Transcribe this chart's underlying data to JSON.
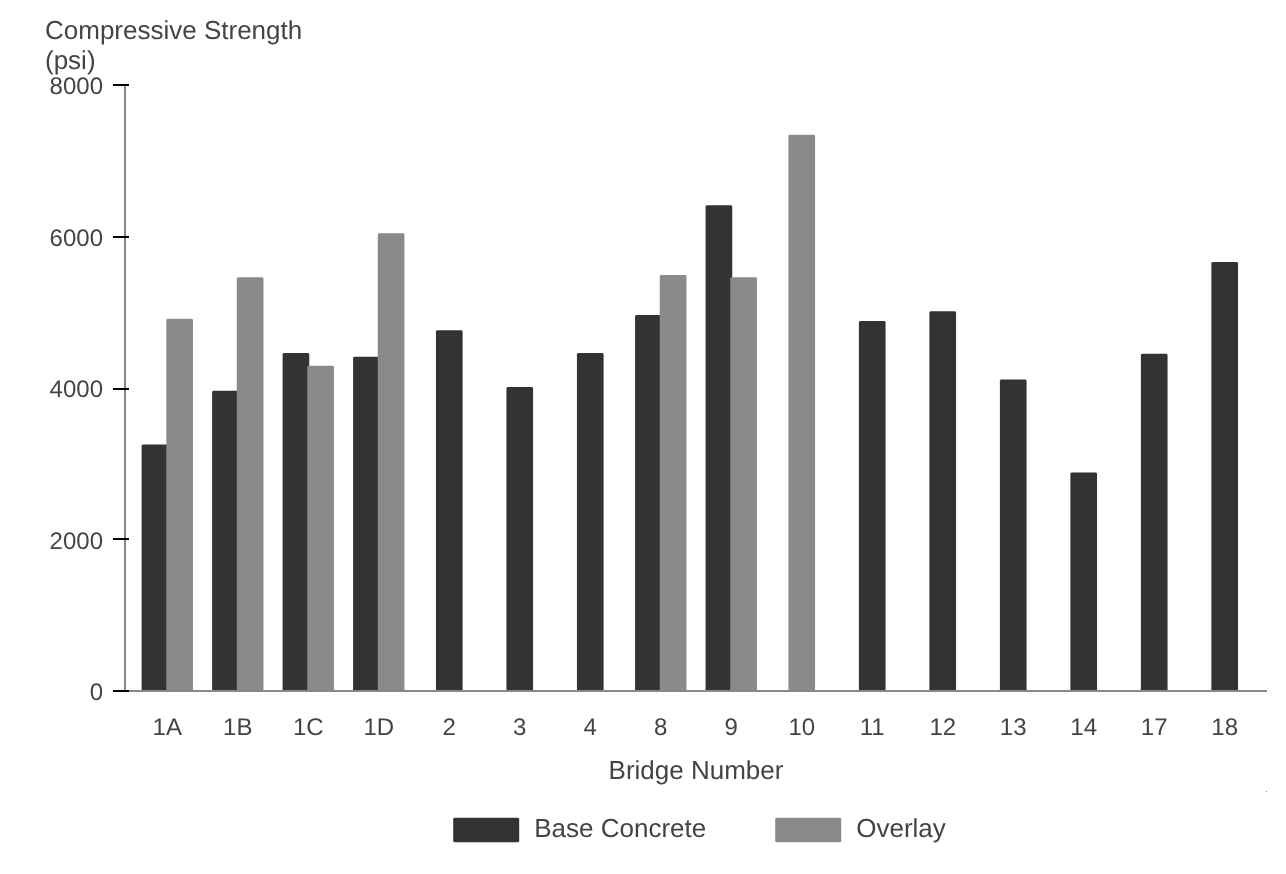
{
  "chart_data": {
    "type": "bar",
    "ylabel": "Compressive Strength\n(psi)",
    "xlabel": "Bridge Number",
    "categories": [
      "1A",
      "1B",
      "1C",
      "1D",
      "2",
      "3",
      "4",
      "8",
      "9",
      "10",
      "11",
      "12",
      "13",
      "14",
      "17",
      "18"
    ],
    "series": [
      {
        "name": "Base Concrete",
        "color": "#333333",
        "values": [
          3240,
          3950,
          4450,
          4400,
          4750,
          4000,
          4450,
          4950,
          6400,
          null,
          4870,
          5000,
          4100,
          2870,
          4440,
          5650
        ]
      },
      {
        "name": "Overlay",
        "color": "#8a8a8a",
        "values": [
          4900,
          5450,
          4280,
          6030,
          null,
          null,
          null,
          5480,
          5450,
          7330,
          null,
          null,
          null,
          null,
          null,
          null
        ]
      }
    ],
    "ylim": [
      0,
      8000
    ],
    "yticks": [
      0,
      2000,
      4000,
      6000,
      8000
    ],
    "grid": false,
    "legend": "bottom"
  }
}
